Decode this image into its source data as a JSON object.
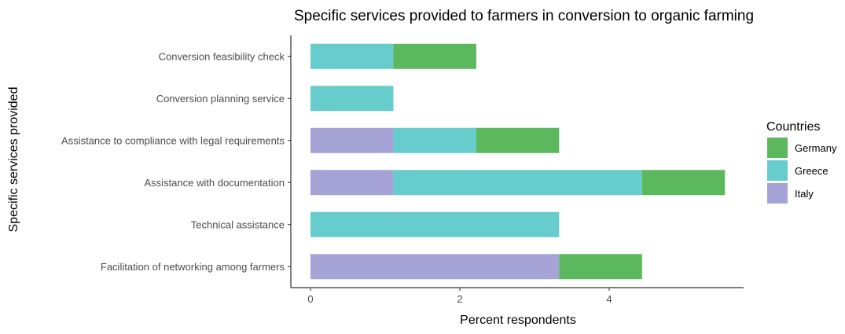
{
  "chart_data": {
    "type": "bar",
    "orientation": "horizontal",
    "stacked": true,
    "title": "Specific services provided to farmers in conversion to organic farming",
    "xlabel": "Percent respondents",
    "ylabel": "Specific services provided",
    "xlim": [
      0,
      5.8
    ],
    "xticks": [
      0,
      2,
      4
    ],
    "grid": false,
    "legend_position": "right",
    "legend_title": "Countries",
    "categories": [
      "Conversion feasibility check",
      "Conversion planning service",
      "Assistance to compliance with legal requirements",
      "Assistance with documentation",
      "Technical assistance",
      "Facilitation of networking among farmers"
    ],
    "stack_order": [
      "Italy",
      "Greece",
      "Germany"
    ],
    "series": [
      {
        "name": "Germany",
        "color": "#5cb85c",
        "values": [
          1.11,
          0,
          1.11,
          1.11,
          0,
          1.11
        ]
      },
      {
        "name": "Greece",
        "color": "#66cccc",
        "values": [
          1.11,
          1.11,
          1.11,
          3.33,
          3.33,
          0
        ]
      },
      {
        "name": "Italy",
        "color": "#a6a3d6",
        "values": [
          0,
          0,
          1.11,
          1.11,
          0,
          3.33
        ]
      }
    ]
  }
}
